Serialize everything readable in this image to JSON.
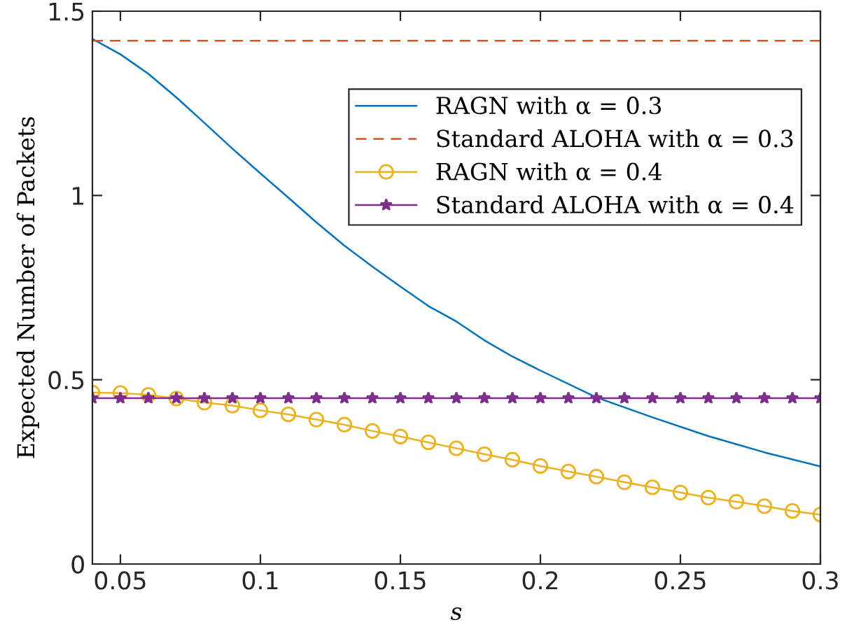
{
  "chart_data": {
    "type": "line",
    "xlabel": "s",
    "ylabel": "Expected Number of Packets",
    "xlim": [
      0.04,
      0.3
    ],
    "ylim": [
      0,
      1.5
    ],
    "xticks": [
      0.05,
      0.1,
      0.15,
      0.2,
      0.25,
      0.3
    ],
    "yticks": [
      0,
      0.5,
      1,
      1.5
    ],
    "grid": false,
    "legend": "top right",
    "series": [
      {
        "name": "RAGN with α = 0.3",
        "color": "#0072bd",
        "line_style": "solid",
        "marker": "none",
        "x": [
          0.04,
          0.05,
          0.06,
          0.07,
          0.08,
          0.09,
          0.1,
          0.11,
          0.12,
          0.13,
          0.14,
          0.15,
          0.16,
          0.17,
          0.18,
          0.19,
          0.2,
          0.22,
          0.24,
          0.26,
          0.28,
          0.3
        ],
        "values": [
          1.425,
          1.383,
          1.33,
          1.266,
          1.197,
          1.127,
          1.06,
          0.994,
          0.927,
          0.864,
          0.807,
          0.753,
          0.7,
          0.658,
          0.607,
          0.563,
          0.525,
          0.452,
          0.398,
          0.347,
          0.303,
          0.265
        ]
      },
      {
        "name": "Standard ALOHA with α = 0.3",
        "color": "#d95319",
        "line_style": "dashed",
        "marker": "none",
        "x": [
          0.04,
          0.3
        ],
        "values": [
          1.42,
          1.42
        ]
      },
      {
        "name": "RAGN with α = 0.4",
        "color": "#edb120",
        "line_style": "solid",
        "marker": "circle",
        "x": [
          0.04,
          0.05,
          0.06,
          0.07,
          0.08,
          0.09,
          0.1,
          0.11,
          0.12,
          0.13,
          0.14,
          0.15,
          0.16,
          0.17,
          0.18,
          0.19,
          0.2,
          0.21,
          0.22,
          0.23,
          0.24,
          0.25,
          0.26,
          0.27,
          0.28,
          0.29,
          0.3
        ],
        "values": [
          0.465,
          0.464,
          0.459,
          0.449,
          0.438,
          0.43,
          0.417,
          0.406,
          0.392,
          0.378,
          0.361,
          0.346,
          0.33,
          0.314,
          0.298,
          0.283,
          0.266,
          0.251,
          0.237,
          0.222,
          0.208,
          0.194,
          0.18,
          0.169,
          0.157,
          0.144,
          0.134
        ]
      },
      {
        "name": "Standard ALOHA with α = 0.4",
        "color": "#7e2f8e",
        "line_style": "solid",
        "marker": "star",
        "x": [
          0.04,
          0.05,
          0.06,
          0.07,
          0.08,
          0.09,
          0.1,
          0.11,
          0.12,
          0.13,
          0.14,
          0.15,
          0.16,
          0.17,
          0.18,
          0.19,
          0.2,
          0.21,
          0.22,
          0.23,
          0.24,
          0.25,
          0.26,
          0.27,
          0.28,
          0.29,
          0.3
        ],
        "values": [
          0.45,
          0.45,
          0.45,
          0.45,
          0.45,
          0.45,
          0.45,
          0.45,
          0.45,
          0.45,
          0.45,
          0.45,
          0.45,
          0.45,
          0.45,
          0.45,
          0.45,
          0.45,
          0.45,
          0.45,
          0.45,
          0.45,
          0.45,
          0.45,
          0.45,
          0.45,
          0.45
        ]
      }
    ]
  }
}
